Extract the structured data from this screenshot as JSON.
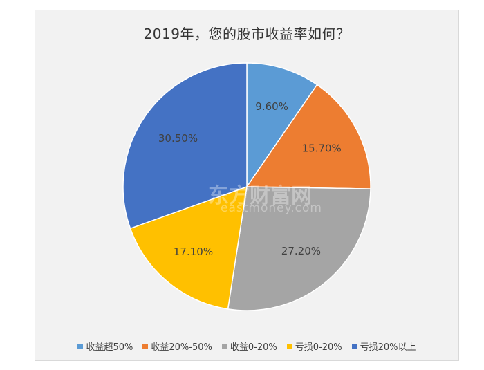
{
  "chart_data": {
    "type": "pie",
    "title": "2019年，您的股市收益率如何？",
    "categories": [
      "收益超50%",
      "收益20%-50%",
      "收益0-20%",
      "亏损0-20%",
      "亏损20%以上"
    ],
    "values": [
      9.6,
      15.7,
      27.2,
      17.1,
      30.5
    ],
    "labels": [
      "9.60%",
      "15.70%",
      "27.20%",
      "17.10%",
      "30.50%"
    ],
    "colors": [
      "#5b9bd5",
      "#ed7d31",
      "#a5a5a5",
      "#ffc000",
      "#4472c4"
    ],
    "legend_position": "bottom",
    "start_angle": "12-o'clock",
    "direction": "clockwise"
  },
  "watermark": {
    "brand": "东方财富网",
    "domain": "eastmoney.com"
  }
}
